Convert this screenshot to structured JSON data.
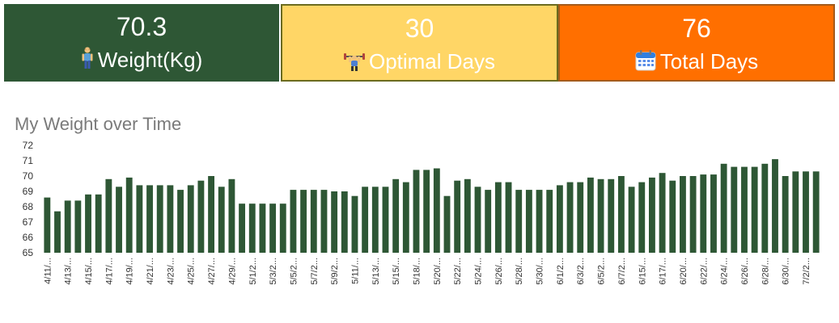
{
  "kpis": {
    "weight": {
      "value": "70.3",
      "label": "Weight(Kg)",
      "icon": "standing-person-icon",
      "color": "#2e5735"
    },
    "optimal": {
      "value": "30",
      "label": "Optimal Days",
      "icon": "weightlifter-icon",
      "color": "#ffd666"
    },
    "total": {
      "value": "76",
      "label": "Total Days",
      "icon": "calendar-icon",
      "color": "#ff6f00"
    }
  },
  "chart_data": {
    "type": "bar",
    "title": "My Weight over Time",
    "xlabel": "",
    "ylabel": "",
    "ylim": [
      65,
      72
    ],
    "yticks": [
      65,
      66,
      67,
      68,
      69,
      70,
      71,
      72
    ],
    "bar_color": "#2e5735",
    "grid": false,
    "values": [
      68.6,
      67.7,
      68.4,
      68.4,
      68.8,
      68.8,
      69.8,
      69.3,
      69.9,
      69.4,
      69.4,
      69.4,
      69.4,
      69.1,
      69.4,
      69.7,
      70.0,
      69.3,
      69.8,
      68.2,
      68.2,
      68.2,
      68.2,
      68.2,
      69.1,
      69.1,
      69.1,
      69.1,
      69.0,
      69.0,
      68.7,
      69.3,
      69.3,
      69.3,
      69.8,
      69.6,
      70.4,
      70.4,
      70.5,
      68.7,
      69.7,
      69.8,
      69.3,
      69.1,
      69.6,
      69.6,
      69.1,
      69.1,
      69.1,
      69.1,
      69.4,
      69.6,
      69.6,
      69.9,
      69.8,
      69.8,
      70.0,
      69.3,
      69.6,
      69.9,
      70.2,
      69.7,
      70.0,
      70.0,
      70.1,
      70.1,
      70.8,
      70.6,
      70.6,
      70.6,
      70.8,
      71.1,
      70.0,
      70.3,
      70.3,
      70.3
    ],
    "tick_labels": [
      "4/11/...",
      "4/13/...",
      "4/15/...",
      "4/17/...",
      "4/19/...",
      "4/21/...",
      "4/23/...",
      "4/25/...",
      "4/27/...",
      "4/29/...",
      "5/1/2...",
      "5/3/2...",
      "5/5/2...",
      "5/7/2...",
      "5/9/2...",
      "5/11/...",
      "5/13/...",
      "5/15/...",
      "5/18/...",
      "5/20/...",
      "5/22/...",
      "5/24/...",
      "5/26/...",
      "5/28/...",
      "5/30/...",
      "6/1/2...",
      "6/3/2...",
      "6/5/2...",
      "6/7/2...",
      "6/15/...",
      "6/17/...",
      "6/20/...",
      "6/22/...",
      "6/24/...",
      "6/26/...",
      "6/28/...",
      "6/30/...",
      "7/2/2..."
    ]
  }
}
